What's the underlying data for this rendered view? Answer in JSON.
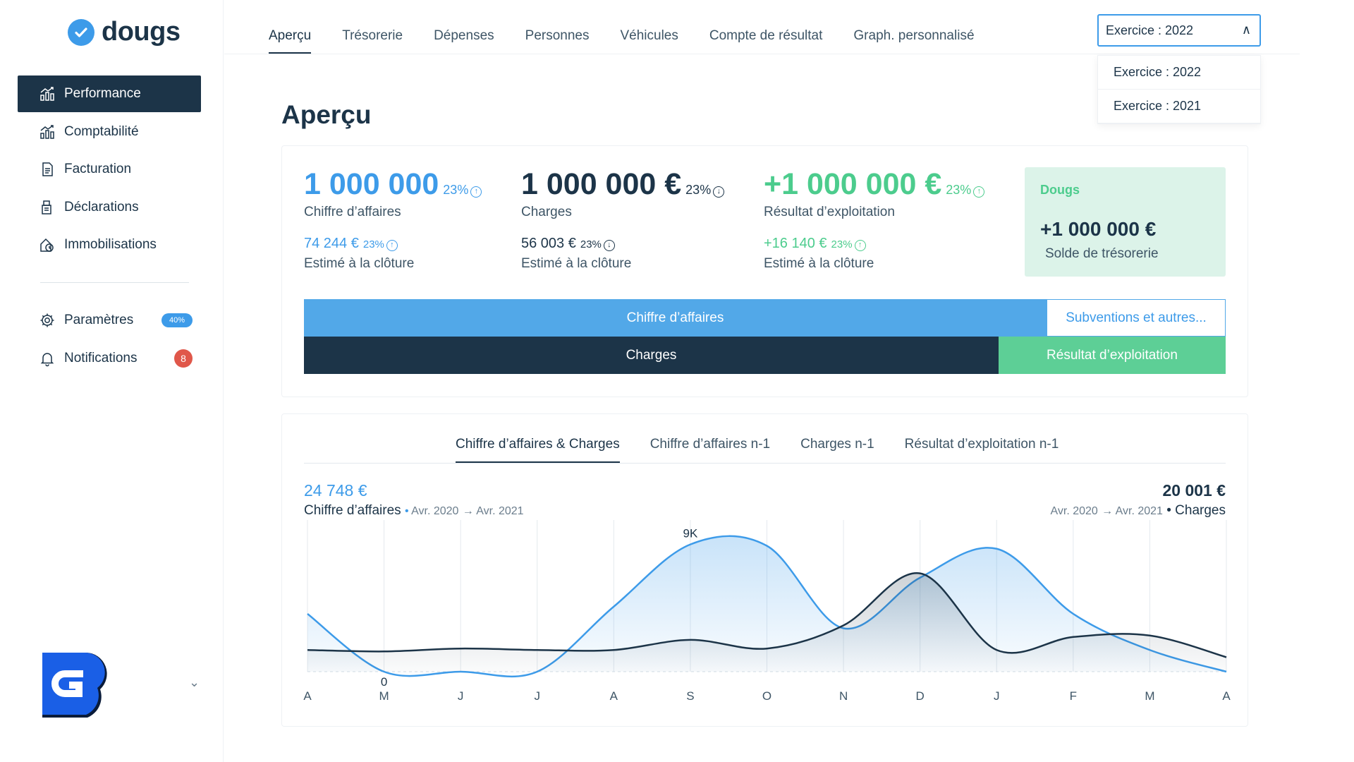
{
  "brand": {
    "name": "dougs"
  },
  "sidebar": {
    "items": [
      {
        "label": "Performance",
        "icon": "chart-icon"
      },
      {
        "label": "Comptabilité",
        "icon": "chart-icon"
      },
      {
        "label": "Facturation",
        "icon": "document-icon"
      },
      {
        "label": "Déclarations",
        "icon": "declaration-icon"
      },
      {
        "label": "Immobilisations",
        "icon": "asset-icon"
      }
    ],
    "settings": {
      "label": "Paramètres",
      "badge": "40%"
    },
    "notifications": {
      "label": "Notifications",
      "badge": "8"
    }
  },
  "tabs": [
    "Aperçu",
    "Trésorerie",
    "Dépenses",
    "Personnes",
    "Véhicules",
    "Compte de résultat",
    "Graph. personnalisé"
  ],
  "year_select": {
    "value": "Exercice : 2022",
    "options": [
      "Exercice : 2022",
      "Exercice : 2021"
    ]
  },
  "page_title": "Aperçu",
  "kpis": {
    "revenue": {
      "value": "1 000 000",
      "pct": "23%",
      "label": "Chiffre d’affaires",
      "sub_value": "74 244 €",
      "sub_pct": "23%",
      "sub_label": "Estimé à la clôture"
    },
    "charges": {
      "value": "1 000 000 €",
      "pct": "23%",
      "label": "Charges",
      "sub_value": "56 003 €",
      "sub_pct": "23%",
      "sub_label": "Estimé à la clôture"
    },
    "result": {
      "value": "+1 000 000 €",
      "pct": "23%",
      "label": "Résultat d’exploitation",
      "sub_value": "+16 140 €",
      "sub_pct": "23%",
      "sub_label": "Estimé à la clôture"
    }
  },
  "treasury": {
    "brand": "Dougs",
    "value": "+1 000 000 €",
    "label": "Solde de trésorerie"
  },
  "bars": {
    "revenue_label": "Chiffre d’affaires",
    "grants_label": "Subventions et autres...",
    "charges_label": "Charges",
    "result_label": "Résultat d’exploitation"
  },
  "chart_tabs": [
    "Chiffre d’affaires & Charges",
    "Chiffre d’affaires n-1",
    "Charges n-1",
    "Résultat d’exploitation n-1"
  ],
  "chart_header": {
    "left_total": "24 748 €",
    "left_label": "Chiffre d’affaires",
    "left_from": "Avr. 2020",
    "left_to": "Avr. 2021",
    "right_total": "20 001 €",
    "right_label": "Charges",
    "right_from": "Avr. 2020",
    "right_to": "Avr. 2021"
  },
  "colors": {
    "accent": "#3d9be9",
    "dark": "#1c3448",
    "green": "#4ccc8d",
    "red": "#e0574a"
  },
  "chart_data": {
    "type": "area",
    "categories": [
      "A",
      "M",
      "J",
      "J",
      "A",
      "S",
      "O",
      "N",
      "D",
      "J",
      "F",
      "M",
      "A"
    ],
    "series": [
      {
        "name": "Chiffre d’affaires",
        "values": [
          4000,
          0,
          0,
          0,
          4500,
          8800,
          8700,
          3000,
          6500,
          8500,
          4000,
          1500,
          0
        ]
      },
      {
        "name": "Charges",
        "values": [
          1500,
          1400,
          1600,
          1500,
          1500,
          2200,
          1600,
          3200,
          6800,
          1500,
          2400,
          2500,
          1000
        ]
      }
    ],
    "annotations": [
      {
        "category_index": 1,
        "series": "Chiffre d’affaires",
        "text": "0"
      },
      {
        "category_index": 5,
        "series": "Chiffre d’affaires",
        "text": "9K"
      }
    ],
    "ylim": [
      0,
      10000
    ],
    "grid": "vertical"
  }
}
